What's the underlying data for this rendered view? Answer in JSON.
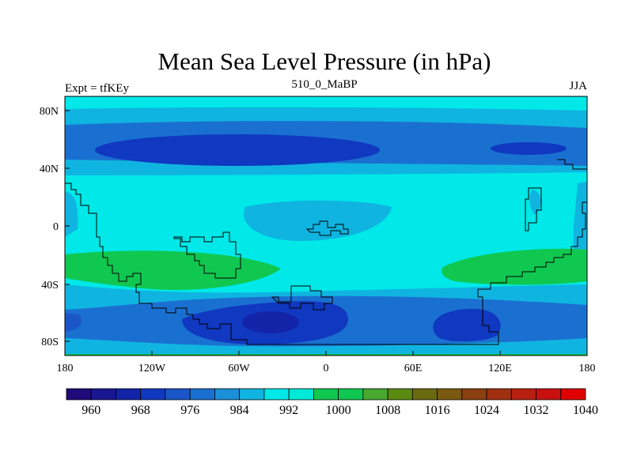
{
  "title": "Mean Sea Level Pressure (in hPa)",
  "subtitle_left": "Expt = tfKEy",
  "subtitle_center": "510_0_MaBP",
  "subtitle_right": "JJA",
  "colors": {
    "background": "#ffffff",
    "coastline": "#000000"
  },
  "chart_data": {
    "type": "heatmap",
    "title": "Mean Sea Level Pressure (in hPa)",
    "unit": "hPa",
    "x_ticks": [
      "180",
      "120W",
      "60W",
      "0",
      "60E",
      "120E",
      "180"
    ],
    "y_ticks": [
      "80N",
      "40N",
      "0",
      "40S",
      "80S"
    ],
    "x_range": [
      -180,
      180
    ],
    "y_range": [
      -90,
      90
    ],
    "colorbar": {
      "labels": [
        "960",
        "968",
        "976",
        "984",
        "992",
        "1000",
        "1008",
        "1016",
        "1024",
        "1032",
        "1040"
      ],
      "colors": [
        "#1e0a78",
        "#1a1690",
        "#1424a8",
        "#1038c0",
        "#1a56c8",
        "#1a70d0",
        "#1a90d8",
        "#10b4e0",
        "#00e8e8",
        "#00e8d8",
        "#10c850",
        "#10c850",
        "#48a830",
        "#5a8a10",
        "#6a6a10",
        "#7a5a10",
        "#8a4010",
        "#a03010",
        "#b82010",
        "#c81010",
        "#e00000"
      ]
    },
    "regions": [
      {
        "name": "arctic-ring",
        "level": "992",
        "color": "#10b4e0"
      },
      {
        "name": "nh-subpolar-band",
        "level": "984",
        "color": "#1a70d0"
      },
      {
        "name": "nh-low-west",
        "level": "976",
        "color": "#1038c0"
      },
      {
        "name": "nh-low-east",
        "level": "976",
        "color": "#1038c0"
      },
      {
        "name": "equatorial-trough",
        "level": "992",
        "color": "#10b4e0"
      },
      {
        "name": "subtropical-high-west",
        "level": "1008",
        "color": "#10c850"
      },
      {
        "name": "subtropical-high-east",
        "level": "1008",
        "color": "#10c850"
      },
      {
        "name": "southern-ocean-low",
        "level": "968",
        "color": "#1424a8"
      },
      {
        "name": "southern-ocean-low-east",
        "level": "976",
        "color": "#1038c0"
      }
    ]
  }
}
